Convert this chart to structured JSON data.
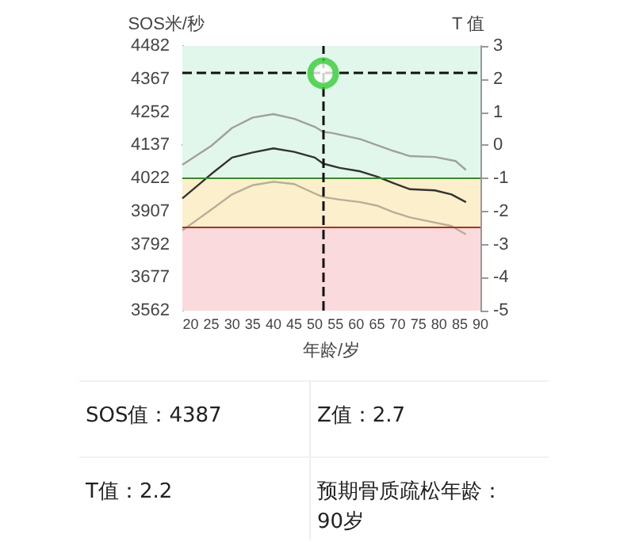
{
  "chart_data": [
    {
      "type": "line",
      "xlabel": "年龄/岁",
      "ylabel": "SOS米/秒",
      "y2label": "T 值",
      "xlim": [
        18,
        90
      ],
      "xticks": [
        20,
        25,
        30,
        35,
        40,
        45,
        50,
        55,
        60,
        65,
        70,
        75,
        80,
        85,
        90
      ],
      "ylim": [
        3562,
        4482
      ],
      "yticks": [
        3562,
        3677,
        3792,
        3907,
        4022,
        4137,
        4252,
        4367,
        4482
      ],
      "y2lim": [
        -5,
        3
      ],
      "y2ticks": [
        -5,
        -4,
        -3,
        -2,
        -1,
        0,
        1,
        2,
        3
      ],
      "grid": false,
      "marker": "none",
      "line_style": "solid",
      "series": [
        {
          "color": "#a0a0a0",
          "x": [
            18,
            25,
            30,
            35,
            40,
            45,
            50,
            52,
            54,
            61,
            69,
            73,
            79,
            84,
            86.5
          ],
          "values": [
            4069,
            4135,
            4197,
            4233,
            4245,
            4229,
            4201,
            4183,
            4180,
            4158,
            4117,
            4099,
            4096,
            4082,
            4051
          ]
        },
        {
          "color": "#333333",
          "x": [
            18,
            25,
            30,
            35,
            40,
            45,
            50,
            52,
            56,
            61,
            65,
            69,
            73,
            79,
            83,
            86.5
          ],
          "values": [
            3952,
            4037,
            4094,
            4112,
            4126,
            4114,
            4094,
            4073,
            4058,
            4046,
            4028,
            4005,
            3984,
            3980,
            3966,
            3939
          ]
        },
        {
          "color": "#b8ae98",
          "x": [
            18,
            25,
            30,
            35,
            40,
            45,
            50,
            52,
            56,
            61,
            65,
            69,
            73,
            79,
            83,
            86.5
          ],
          "values": [
            3841,
            3913,
            3966,
            3998,
            4010,
            4002,
            3969,
            3957,
            3948,
            3939,
            3927,
            3904,
            3886,
            3868,
            3856,
            3827
          ]
        },
        {
          "type": "scatter",
          "marker": "circle",
          "color": "#33cc33",
          "x": [
            52
          ],
          "values": [
            4387
          ]
        }
      ],
      "bands": [
        {
          "axis": "y",
          "from": 4022,
          "to": 4482,
          "color": "#e1f7ec"
        },
        {
          "axis": "y",
          "from": 3850,
          "to": 4022,
          "color": "#fcefcb"
        },
        {
          "axis": "y",
          "from": 3562,
          "to": 3850,
          "color": "#fadadd"
        }
      ],
      "ref_lines": [
        {
          "axis": "y",
          "value": 4022,
          "color": "#3a8a2a",
          "line_style": "solid"
        },
        {
          "axis": "y",
          "value": 3850,
          "color": "#b03020",
          "line_style": "solid"
        },
        {
          "axis": "y",
          "value": 4387,
          "color": "#111111",
          "line_style": "dashed"
        },
        {
          "axis": "x",
          "value": 52,
          "color": "#111111",
          "line_style": "dashed"
        }
      ]
    },
    {
      "type": "other",
      "annotations": [
        "SOS值：4387",
        "Z值：2.7",
        "T值：2.2",
        "预期骨质疏松年龄：90岁"
      ]
    }
  ]
}
